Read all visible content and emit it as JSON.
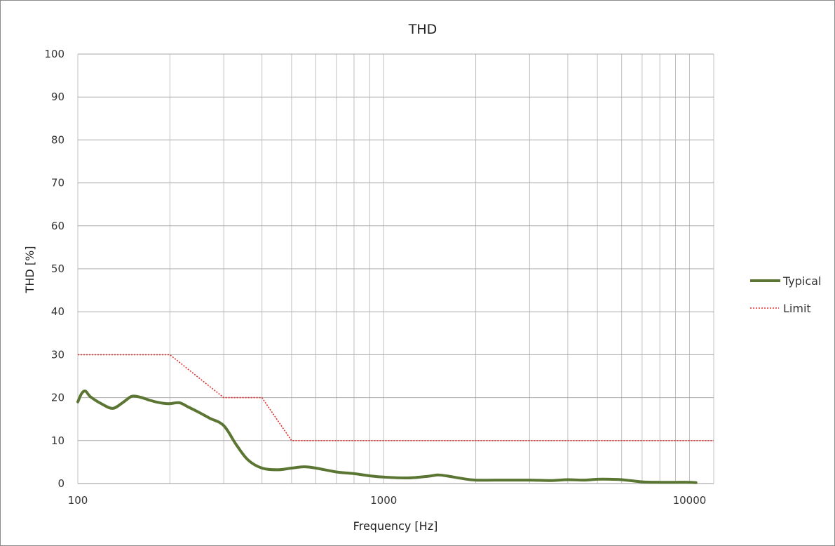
{
  "chart_data": {
    "type": "line",
    "title": "THD",
    "xlabel": "Frequency [Hz]",
    "ylabel": "THD [%]",
    "x_scale": "log",
    "xlim": [
      100,
      12000
    ],
    "ylim": [
      0,
      100
    ],
    "x_ticks": [
      100,
      1000,
      10000
    ],
    "x_tick_labels": [
      "100",
      "1000",
      "10000"
    ],
    "y_ticks": [
      0,
      10,
      20,
      30,
      40,
      50,
      60,
      70,
      80,
      90,
      100
    ],
    "y_tick_labels": [
      "0",
      "10",
      "20",
      "30",
      "40",
      "50",
      "60",
      "70",
      "80",
      "90",
      "100"
    ],
    "grid": true,
    "legend_position": "right",
    "series": [
      {
        "name": "Typical",
        "color": "#5b7533",
        "style": "solid",
        "x": [
          100,
          103,
          106,
          110,
          120,
          130,
          140,
          150,
          160,
          170,
          180,
          190,
          200,
          215,
          230,
          250,
          270,
          300,
          330,
          360,
          400,
          450,
          500,
          550,
          600,
          700,
          800,
          900,
          1000,
          1200,
          1400,
          1500,
          1600,
          1800,
          2000,
          2500,
          3000,
          3500,
          4000,
          4500,
          5000,
          5500,
          6000,
          7000,
          8000,
          9000,
          10000,
          10500
        ],
        "y": [
          19,
          21,
          21.5,
          20.2,
          18.5,
          17.5,
          18.8,
          20.3,
          20.1,
          19.5,
          19,
          18.7,
          18.6,
          18.8,
          17.8,
          16.5,
          15.2,
          13.5,
          9,
          5.5,
          3.6,
          3.2,
          3.6,
          3.9,
          3.6,
          2.7,
          2.3,
          1.8,
          1.5,
          1.3,
          1.7,
          2.0,
          1.8,
          1.2,
          0.8,
          0.8,
          0.8,
          0.7,
          0.9,
          0.8,
          1.0,
          1.0,
          0.9,
          0.4,
          0.3,
          0.3,
          0.3,
          0.2
        ]
      },
      {
        "name": "Limit",
        "color": "#e0302b",
        "style": "dotted",
        "x": [
          100,
          200,
          300,
          400,
          500,
          12000
        ],
        "y": [
          30,
          30,
          20,
          20,
          10,
          10
        ]
      }
    ]
  }
}
